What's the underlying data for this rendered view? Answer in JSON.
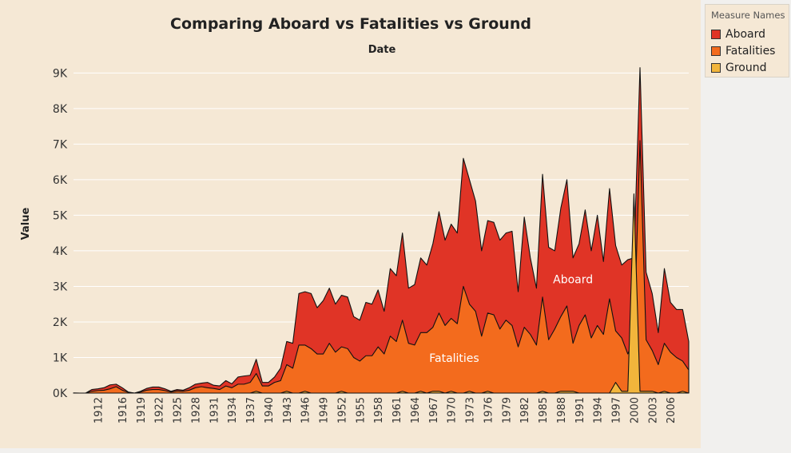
{
  "chart_data": {
    "type": "area",
    "title": "Comparing Aboard vs Fatalities vs Ground",
    "xlabel": "Date",
    "ylabel": "Value",
    "stacked": false,
    "grid": true,
    "legend": {
      "title": "Measure Names",
      "placement": "right"
    },
    "ylim": [
      0,
      9300
    ],
    "yticks": [
      0,
      1000,
      2000,
      3000,
      4000,
      5000,
      6000,
      7000,
      8000,
      9000
    ],
    "ytick_labels": [
      "0K",
      "1K",
      "2K",
      "3K",
      "4K",
      "5K",
      "6K",
      "7K",
      "8K",
      "9K"
    ],
    "xticks": [
      1912,
      1916,
      1919,
      1922,
      1925,
      1928,
      1931,
      1934,
      1937,
      1940,
      1943,
      1946,
      1949,
      1952,
      1955,
      1958,
      1961,
      1964,
      1967,
      1970,
      1973,
      1976,
      1979,
      1982,
      1985,
      1988,
      1991,
      1994,
      1997,
      2000,
      2003,
      2006
    ],
    "x": [
      1908,
      1909,
      1910,
      1911,
      1912,
      1913,
      1914,
      1915,
      1916,
      1917,
      1918,
      1919,
      1920,
      1921,
      1922,
      1923,
      1924,
      1925,
      1926,
      1927,
      1928,
      1929,
      1930,
      1931,
      1932,
      1933,
      1934,
      1935,
      1936,
      1937,
      1938,
      1939,
      1940,
      1941,
      1942,
      1943,
      1944,
      1945,
      1946,
      1947,
      1948,
      1949,
      1950,
      1951,
      1952,
      1953,
      1954,
      1955,
      1956,
      1957,
      1958,
      1959,
      1960,
      1961,
      1962,
      1963,
      1964,
      1965,
      1966,
      1967,
      1968,
      1969,
      1970,
      1971,
      1972,
      1973,
      1974,
      1975,
      1976,
      1977,
      1978,
      1979,
      1980,
      1981,
      1982,
      1983,
      1984,
      1985,
      1986,
      1987,
      1988,
      1989,
      1990,
      1991,
      1992,
      1993,
      1994,
      1995,
      1996,
      1997,
      1998,
      1999,
      2000,
      2001,
      2002,
      2003,
      2004,
      2005,
      2006,
      2007,
      2008,
      2009
    ],
    "series": [
      {
        "name": "Aboard",
        "color": "#e03426",
        "values": [
          2,
          0,
          0,
          100,
          120,
          150,
          230,
          250,
          150,
          30,
          0,
          50,
          130,
          170,
          170,
          120,
          50,
          100,
          80,
          150,
          250,
          280,
          300,
          220,
          200,
          350,
          260,
          450,
          480,
          500,
          950,
          300,
          300,
          450,
          700,
          1450,
          1400,
          2800,
          2850,
          2800,
          2400,
          2600,
          2950,
          2500,
          2750,
          2700,
          2150,
          2050,
          2550,
          2500,
          2900,
          2300,
          3500,
          3300,
          4500,
          2950,
          3050,
          3800,
          3600,
          4200,
          5100,
          4300,
          4750,
          4500,
          6600,
          6000,
          5400,
          4000,
          4850,
          4800,
          4300,
          4500,
          4550,
          2850,
          4950,
          3800,
          2950,
          6150,
          4100,
          4000,
          5200,
          6000,
          3800,
          4200,
          5150,
          4000,
          5000,
          3700,
          5750,
          4150,
          3600,
          3750,
          3800,
          9150,
          3400,
          2800,
          1700,
          3500,
          2550,
          2350,
          2350,
          1450
        ]
      },
      {
        "name": "Fatalities",
        "color": "#f36b1d",
        "values": [
          1,
          0,
          0,
          50,
          70,
          80,
          120,
          180,
          80,
          20,
          0,
          30,
          80,
          100,
          100,
          70,
          30,
          60,
          50,
          80,
          150,
          180,
          150,
          130,
          100,
          200,
          150,
          250,
          250,
          300,
          550,
          200,
          200,
          300,
          350,
          800,
          700,
          1350,
          1350,
          1250,
          1100,
          1100,
          1400,
          1150,
          1300,
          1250,
          1000,
          900,
          1050,
          1050,
          1300,
          1100,
          1600,
          1450,
          2050,
          1400,
          1350,
          1700,
          1700,
          1850,
          2250,
          1900,
          2100,
          1950,
          3000,
          2500,
          2300,
          1600,
          2250,
          2200,
          1800,
          2050,
          1900,
          1300,
          1850,
          1650,
          1350,
          2700,
          1500,
          1800,
          2150,
          2450,
          1400,
          1900,
          2200,
          1550,
          1900,
          1650,
          2650,
          1750,
          1550,
          1100,
          1500,
          7100,
          1500,
          1200,
          800,
          1400,
          1150,
          1000,
          900,
          650
        ]
      },
      {
        "name": "Ground",
        "color": "#f2b53b",
        "values": [
          0,
          0,
          0,
          0,
          0,
          0,
          0,
          0,
          0,
          0,
          0,
          0,
          0,
          0,
          0,
          0,
          0,
          0,
          0,
          0,
          0,
          0,
          0,
          0,
          0,
          0,
          0,
          0,
          0,
          0,
          50,
          0,
          0,
          0,
          0,
          50,
          0,
          0,
          50,
          0,
          0,
          0,
          0,
          0,
          50,
          0,
          0,
          0,
          0,
          0,
          0,
          0,
          0,
          0,
          50,
          0,
          0,
          50,
          0,
          50,
          50,
          0,
          50,
          0,
          0,
          50,
          0,
          0,
          50,
          0,
          0,
          0,
          0,
          0,
          0,
          0,
          0,
          50,
          0,
          0,
          50,
          50,
          50,
          0,
          0,
          0,
          0,
          0,
          0,
          300,
          50,
          50,
          5600,
          50,
          50,
          50,
          0,
          50,
          0,
          0,
          50,
          0
        ]
      }
    ],
    "annotations": [
      {
        "text": "Aboard",
        "x": 1990,
        "y": 3090,
        "color": "#ffffff"
      },
      {
        "text": "Fatalities",
        "x": 1970.5,
        "y": 880,
        "color": "#ffffff"
      }
    ]
  }
}
